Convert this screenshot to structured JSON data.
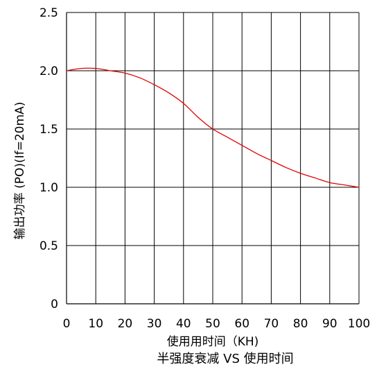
{
  "chart_data": {
    "type": "line",
    "title": "半强度衰减 VS 使用时间",
    "xlabel": "使用用时间（KH)",
    "ylabel": "输出功率 (PO)(If=20mA)",
    "xlim": [
      0,
      100
    ],
    "ylim": [
      0,
      2.5
    ],
    "x_ticks": [
      0,
      10,
      20,
      30,
      40,
      50,
      60,
      70,
      80,
      90,
      100
    ],
    "x_tick_labels": [
      "0",
      "10",
      "20",
      "30",
      "40",
      "50",
      "60",
      "70",
      "80",
      "90",
      "100"
    ],
    "y_ticks": [
      0,
      0.5,
      1.0,
      1.5,
      2.0,
      2.5
    ],
    "y_tick_labels": [
      "0",
      "0.5",
      "1.0",
      "1.5",
      "2.0",
      "2.5"
    ],
    "grid": true,
    "series": [
      {
        "color": "#e00000",
        "x": [
          0,
          5,
          10,
          15,
          20,
          25,
          30,
          35,
          40,
          45,
          50,
          55,
          60,
          65,
          70,
          75,
          80,
          85,
          90,
          95,
          100
        ],
        "y": [
          2.0,
          2.02,
          2.02,
          2.0,
          1.98,
          1.94,
          1.88,
          1.81,
          1.72,
          1.6,
          1.5,
          1.43,
          1.36,
          1.29,
          1.23,
          1.17,
          1.12,
          1.08,
          1.04,
          1.02,
          1.0
        ]
      }
    ]
  }
}
